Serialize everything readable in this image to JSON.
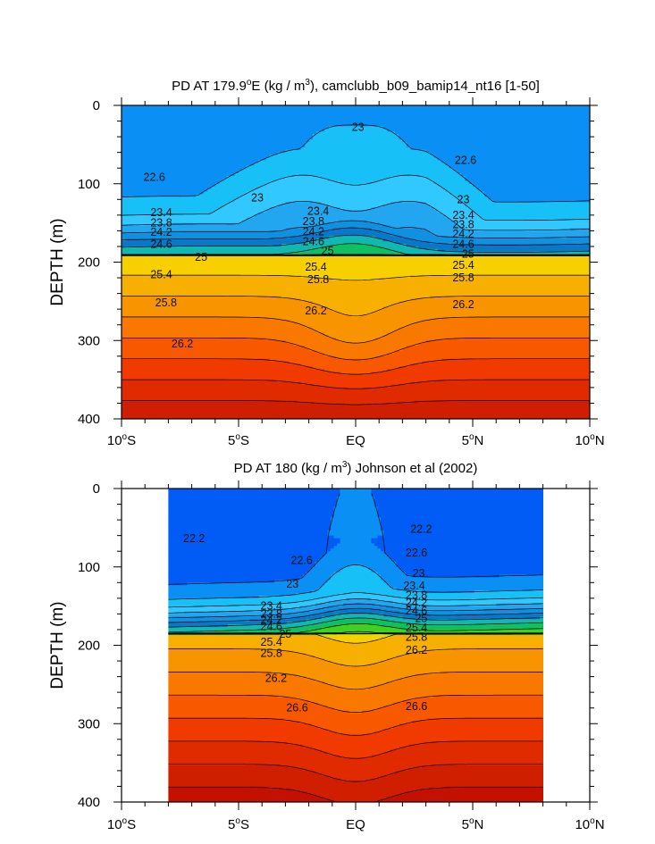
{
  "chart_data": [
    {
      "type": "contour",
      "title_prefix": "PD AT 179.9",
      "title_sup": "o",
      "title_suffix": "E (kg / m",
      "title_sup2": "3",
      "title_end": "), camclubb_b09_bamip14_nt16 [1-50]",
      "ylabel": "DEPTH (m)",
      "ylim": [
        0,
        400
      ],
      "yticks": [
        "0",
        "100",
        "200",
        "300",
        "400"
      ],
      "xticks": [
        {
          "main": "10",
          "sup": "o",
          "suf": "S"
        },
        {
          "main": "5",
          "sup": "o",
          "suf": "S"
        },
        {
          "main": "EQ",
          "sup": "",
          "suf": ""
        },
        {
          "main": "5",
          "sup": "o",
          "suf": "N"
        },
        {
          "main": "10",
          "sup": "o",
          "suf": "N"
        }
      ],
      "xlim_deg": [
        -10,
        10
      ],
      "data_xlim_deg": [
        -10,
        10
      ],
      "contour_labels": [
        {
          "text": "23",
          "lat": 0.1,
          "depth": 28
        },
        {
          "text": "22.6",
          "lat": 4.7,
          "depth": 70
        },
        {
          "text": "22.6",
          "lat": -8.6,
          "depth": 92
        },
        {
          "text": "23",
          "lat": -4.2,
          "depth": 118
        },
        {
          "text": "23",
          "lat": 4.6,
          "depth": 120
        },
        {
          "text": "23.4",
          "lat": -8.3,
          "depth": 137
        },
        {
          "text": "23.8",
          "lat": -8.3,
          "depth": 150
        },
        {
          "text": "24.2",
          "lat": -8.3,
          "depth": 162
        },
        {
          "text": "24.6",
          "lat": -8.3,
          "depth": 177
        },
        {
          "text": "25",
          "lat": -6.6,
          "depth": 194
        },
        {
          "text": "25.4",
          "lat": -8.3,
          "depth": 216
        },
        {
          "text": "25.8",
          "lat": -8.1,
          "depth": 252
        },
        {
          "text": "26.2",
          "lat": -7.4,
          "depth": 304
        },
        {
          "text": "23.4",
          "lat": -1.6,
          "depth": 135
        },
        {
          "text": "23.8",
          "lat": -1.8,
          "depth": 148
        },
        {
          "text": "24.2",
          "lat": -1.8,
          "depth": 161
        },
        {
          "text": "24.6",
          "lat": -1.8,
          "depth": 174
        },
        {
          "text": "25",
          "lat": -1.2,
          "depth": 186
        },
        {
          "text": "25.4",
          "lat": -1.7,
          "depth": 206
        },
        {
          "text": "25.8",
          "lat": -1.6,
          "depth": 222
        },
        {
          "text": "26.2",
          "lat": -1.7,
          "depth": 262
        },
        {
          "text": "23.4",
          "lat": 4.6,
          "depth": 140
        },
        {
          "text": "23.8",
          "lat": 4.6,
          "depth": 152
        },
        {
          "text": "24.2",
          "lat": 4.6,
          "depth": 164
        },
        {
          "text": "24.6",
          "lat": 4.6,
          "depth": 177
        },
        {
          "text": "25",
          "lat": 4.8,
          "depth": 190
        },
        {
          "text": "25.4",
          "lat": 4.6,
          "depth": 204
        },
        {
          "text": "25.8",
          "lat": 4.6,
          "depth": 220
        },
        {
          "text": "26.2",
          "lat": 4.6,
          "depth": 254
        }
      ]
    },
    {
      "type": "contour",
      "title_prefix": "PD AT 180 (kg / m",
      "title_sup": "3",
      "title_suffix": ") Johnson et al (2002)",
      "title_sup2": "",
      "title_end": "",
      "ylabel": "DEPTH (m)",
      "ylim": [
        0,
        400
      ],
      "yticks": [
        "0",
        "100",
        "200",
        "300",
        "400"
      ],
      "xticks": [
        {
          "main": "10",
          "sup": "o",
          "suf": "S"
        },
        {
          "main": "5",
          "sup": "o",
          "suf": "S"
        },
        {
          "main": "EQ",
          "sup": "",
          "suf": ""
        },
        {
          "main": "5",
          "sup": "o",
          "suf": "N"
        },
        {
          "main": "10",
          "sup": "o",
          "suf": "N"
        }
      ],
      "xlim_deg": [
        -10,
        10
      ],
      "data_xlim_deg": [
        -8,
        8
      ],
      "contour_labels": [
        {
          "text": "22.2",
          "lat": -6.9,
          "depth": 64
        },
        {
          "text": "22.2",
          "lat": 2.8,
          "depth": 52
        },
        {
          "text": "22.6",
          "lat": -2.3,
          "depth": 92
        },
        {
          "text": "22.6",
          "lat": 2.6,
          "depth": 82
        },
        {
          "text": "23",
          "lat": -2.7,
          "depth": 122
        },
        {
          "text": "23",
          "lat": 2.7,
          "depth": 108
        },
        {
          "text": "23.4",
          "lat": -3.6,
          "depth": 150
        },
        {
          "text": "23.8",
          "lat": -3.6,
          "depth": 160
        },
        {
          "text": "24.2",
          "lat": -3.6,
          "depth": 168
        },
        {
          "text": "24.6",
          "lat": -3.6,
          "depth": 176
        },
        {
          "text": "25",
          "lat": -3.0,
          "depth": 186
        },
        {
          "text": "25.4",
          "lat": -3.6,
          "depth": 196
        },
        {
          "text": "25.8",
          "lat": -3.6,
          "depth": 210
        },
        {
          "text": "26.2",
          "lat": -3.4,
          "depth": 242
        },
        {
          "text": "26.6",
          "lat": -2.5,
          "depth": 280
        },
        {
          "text": "23.4",
          "lat": 2.5,
          "depth": 124
        },
        {
          "text": "23.8",
          "lat": 2.6,
          "depth": 136
        },
        {
          "text": "24.2",
          "lat": 2.6,
          "depth": 146
        },
        {
          "text": "24.6",
          "lat": 2.6,
          "depth": 156
        },
        {
          "text": "25",
          "lat": 2.8,
          "depth": 166
        },
        {
          "text": "25.4",
          "lat": 2.6,
          "depth": 178
        },
        {
          "text": "25.8",
          "lat": 2.6,
          "depth": 190
        },
        {
          "text": "26.2",
          "lat": 2.6,
          "depth": 206
        },
        {
          "text": "26.6",
          "lat": 2.6,
          "depth": 278
        }
      ]
    }
  ]
}
